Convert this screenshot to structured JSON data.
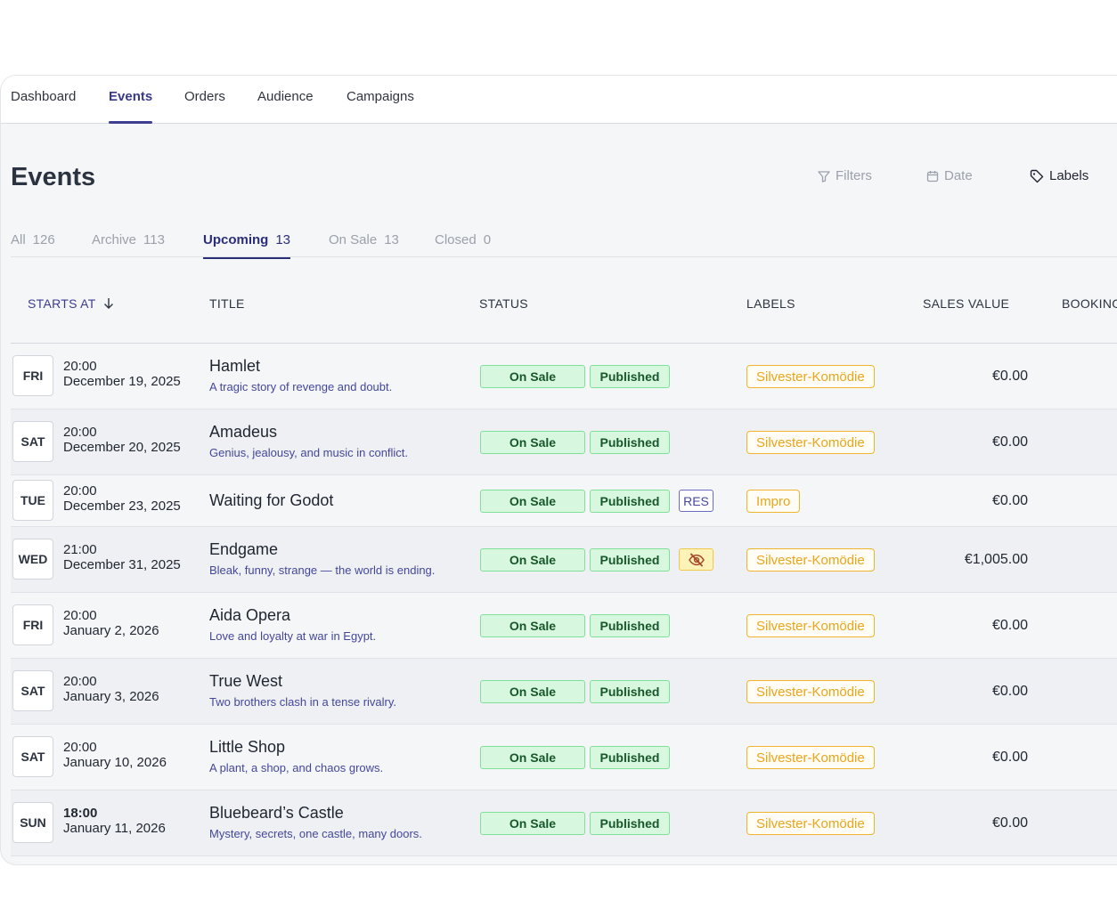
{
  "nav": {
    "items": [
      {
        "label": "Dashboard",
        "active": false
      },
      {
        "label": "Events",
        "active": true
      },
      {
        "label": "Orders",
        "active": false
      },
      {
        "label": "Audience",
        "active": false
      },
      {
        "label": "Campaigns",
        "active": false
      }
    ]
  },
  "page": {
    "title": "Events"
  },
  "toolbar": {
    "filters": "Filters",
    "date": "Date",
    "labels": "Labels"
  },
  "tabs": [
    {
      "label": "All",
      "count": "126",
      "active": false
    },
    {
      "label": "Archive",
      "count": "113",
      "active": false
    },
    {
      "label": "Upcoming",
      "count": "13",
      "active": true
    },
    {
      "label": "On Sale",
      "count": "13",
      "active": false
    },
    {
      "label": "Closed",
      "count": "0",
      "active": false
    }
  ],
  "table": {
    "headers": {
      "starts_at": "STARTS AT",
      "title": "TITLE",
      "status": "STATUS",
      "labels": "LABELS",
      "sales_value": "SALES VALUE",
      "booking": "BOOKING"
    },
    "rows": [
      {
        "day": "FRI",
        "time": "20:00",
        "date": "December 19, 2025",
        "title": "Hamlet",
        "subtitle": "A tragic story of revenge and doubt.",
        "status": [
          "On Sale",
          "Published"
        ],
        "extra": "",
        "label": "Silvester-Komödie",
        "sales": "€0.00"
      },
      {
        "day": "SAT",
        "time": "20:00",
        "date": "December 20, 2025",
        "title": "Amadeus",
        "subtitle": "Genius, jealousy, and music in conflict.",
        "status": [
          "On Sale",
          "Published"
        ],
        "extra": "",
        "label": "Silvester-Komödie",
        "sales": "€0.00"
      },
      {
        "day": "TUE",
        "time": "20:00",
        "date": "December 23, 2025",
        "title": "Waiting for Godot",
        "subtitle": "",
        "status": [
          "On Sale",
          "Published"
        ],
        "extra": "RES",
        "label": "Impro",
        "sales": "€0.00"
      },
      {
        "day": "WED",
        "time": "21:00",
        "date": "December 31, 2025",
        "title": "Endgame",
        "subtitle": "Bleak, funny, strange — the world is ending.",
        "status": [
          "On Sale",
          "Published"
        ],
        "extra": "hidden-icon",
        "label": "Silvester-Komödie",
        "sales": "€1,005.00"
      },
      {
        "day": "FRI",
        "time": "20:00",
        "date": "January 2, 2026",
        "title": "Aida Opera",
        "subtitle": "Love and loyalty at war in Egypt.",
        "status": [
          "On Sale",
          "Published"
        ],
        "extra": "",
        "label": "Silvester-Komödie",
        "sales": "€0.00"
      },
      {
        "day": "SAT",
        "time": "20:00",
        "date": "January 3, 2026",
        "title": "True West",
        "subtitle": "Two brothers clash in a tense rivalry.",
        "status": [
          "On Sale",
          "Published"
        ],
        "extra": "",
        "label": "Silvester-Komödie",
        "sales": "€0.00"
      },
      {
        "day": "SAT",
        "time": "20:00",
        "date": "January 10, 2026",
        "title": "Little Shop",
        "subtitle": "A plant, a shop, and chaos grows.",
        "status": [
          "On Sale",
          "Published"
        ],
        "extra": "",
        "label": "Silvester-Komödie",
        "sales": "€0.00"
      },
      {
        "day": "SUN",
        "time": "18:00",
        "date": "January 11, 2026",
        "title": "Bluebeard’s Castle",
        "subtitle": "Mystery, secrets, one castle, many doors.",
        "status": [
          "On Sale",
          "Published"
        ],
        "extra": "",
        "label": "Silvester-Komödie",
        "sales": "€0.00"
      }
    ]
  }
}
